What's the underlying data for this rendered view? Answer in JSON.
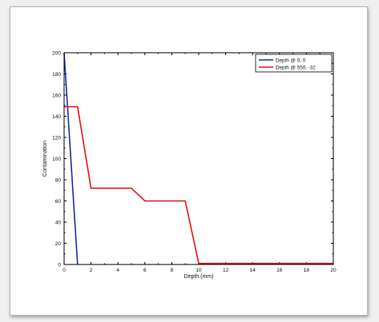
{
  "chart_data": {
    "type": "line",
    "title": "",
    "xlabel": "Depth (mm)",
    "ylabel": "Contamination",
    "xlim": [
      0,
      20
    ],
    "ylim": [
      0,
      200
    ],
    "xticks": [
      0,
      2,
      4,
      6,
      8,
      10,
      12,
      14,
      16,
      18,
      20
    ],
    "yticks": [
      0,
      20,
      40,
      60,
      80,
      100,
      120,
      140,
      160,
      180,
      200
    ],
    "grid": false,
    "legend_position": "top-right",
    "series": [
      {
        "name": "Depth @ 0, 0",
        "color": "#1a2fa8",
        "points": [
          [
            0,
            200
          ],
          [
            1,
            0
          ]
        ]
      },
      {
        "name": "Depth @ 550, -32",
        "color": "#e8141c",
        "points": [
          [
            0,
            149
          ],
          [
            1,
            149
          ],
          [
            2,
            72
          ],
          [
            5,
            72
          ],
          [
            6,
            60
          ],
          [
            9,
            60
          ],
          [
            10,
            1
          ],
          [
            20,
            1
          ]
        ]
      }
    ]
  }
}
